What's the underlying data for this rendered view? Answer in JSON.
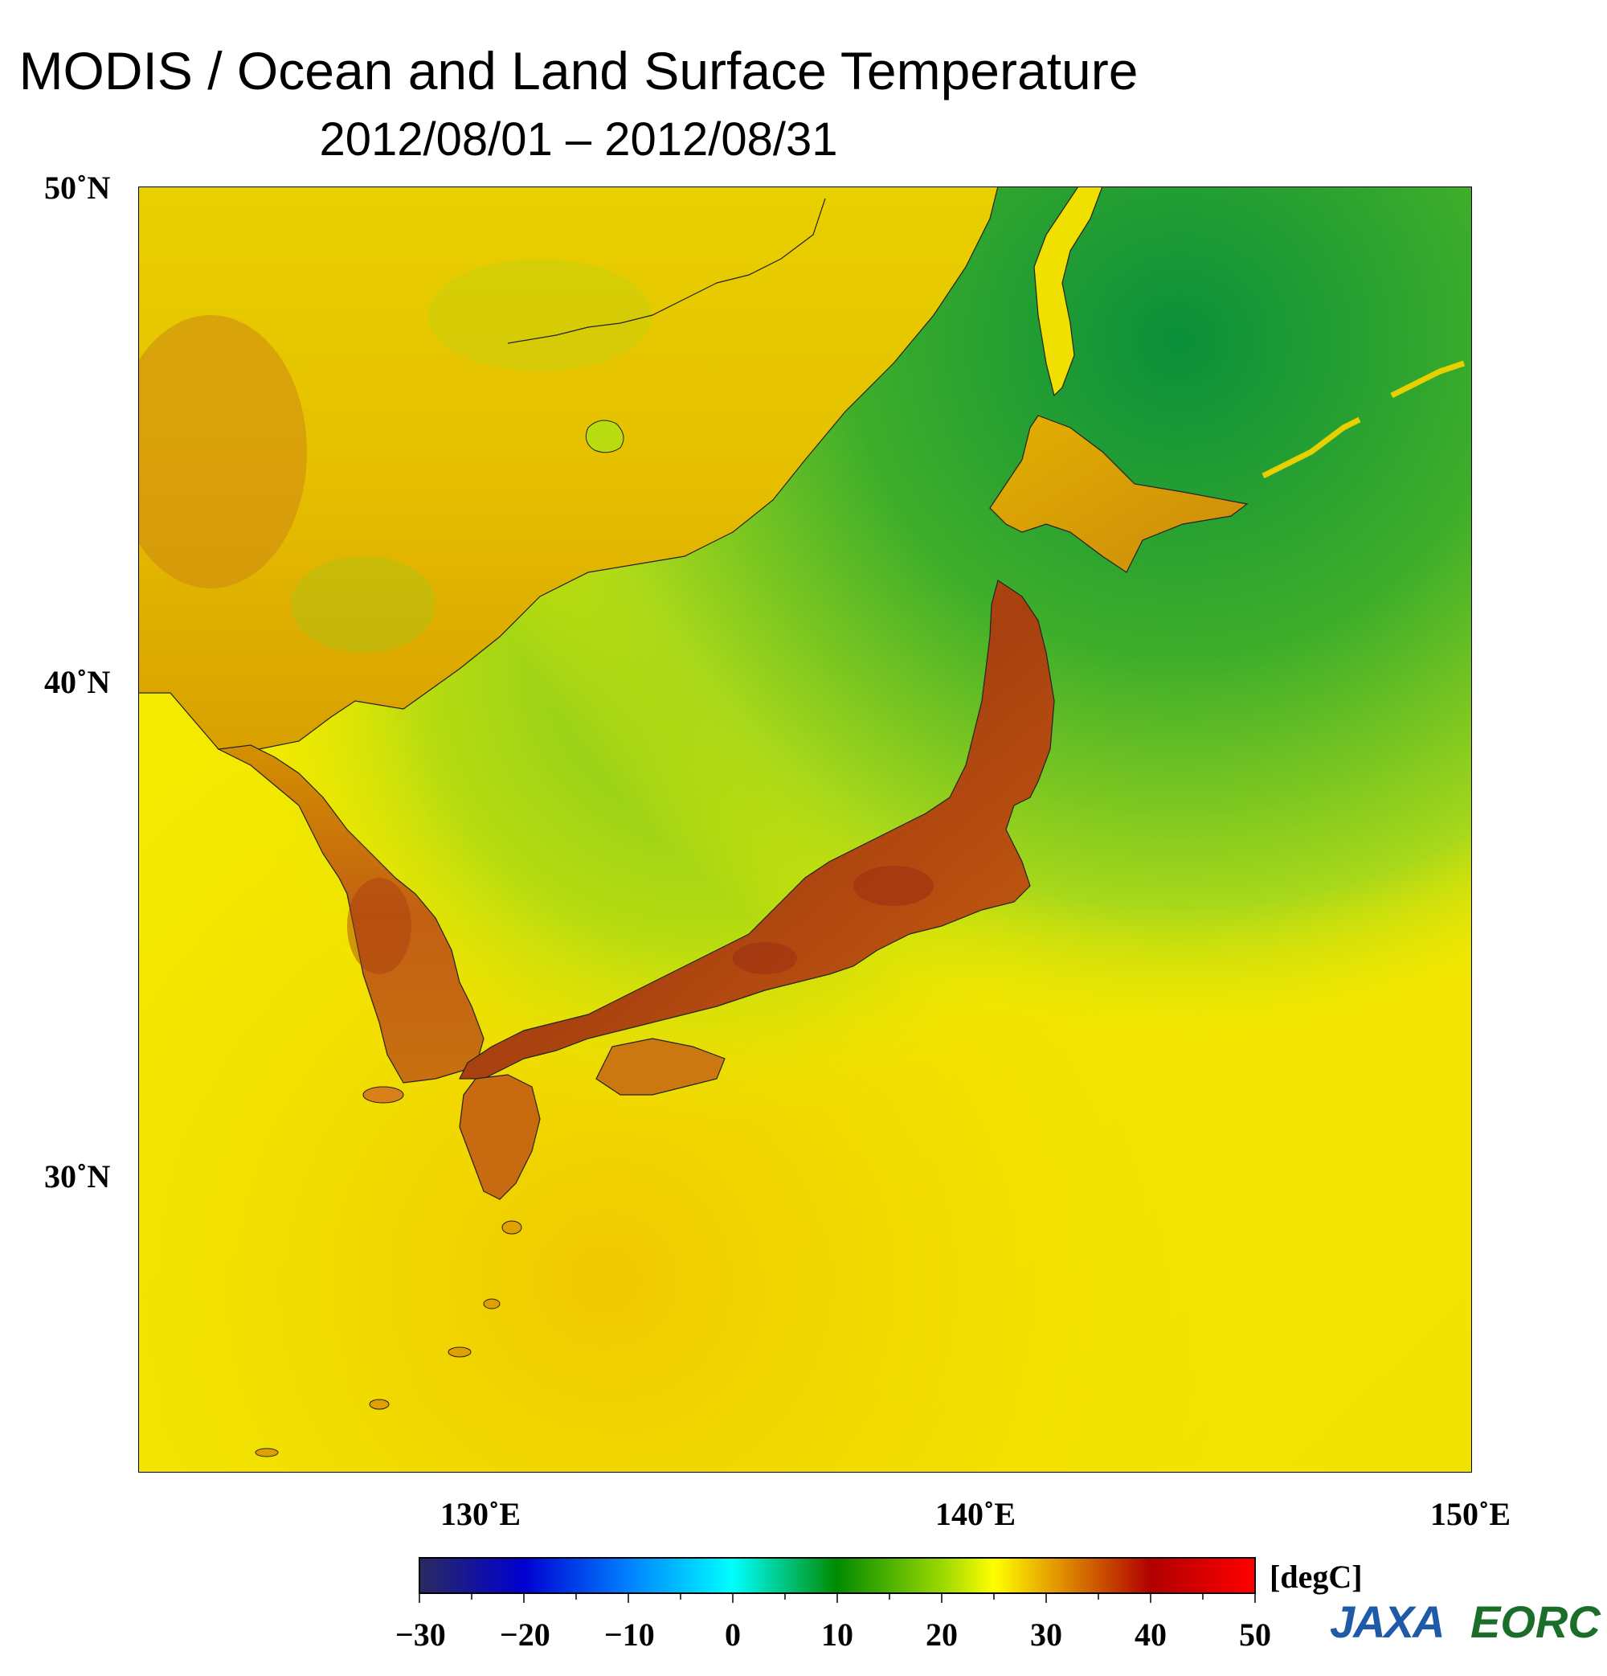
{
  "title": "MODIS / Ocean and Land Surface Temperature",
  "subtitle": "2012/08/01 – 2012/08/31",
  "map": {
    "lat_labels": [
      "50˚N",
      "40˚N",
      "30˚N"
    ],
    "lon_labels": [
      "130˚E",
      "140˚E",
      "150˚E"
    ]
  },
  "colorbar": {
    "unit": "[degC]",
    "tick_labels": [
      "−30",
      "−20",
      "−10",
      "0",
      "10",
      "20",
      "30",
      "40",
      "50"
    ],
    "stops": [
      {
        "value": -30,
        "color": "#2a2a60"
      },
      {
        "value": -20,
        "color": "#0000d0"
      },
      {
        "value": -10,
        "color": "#0080ff"
      },
      {
        "value": 0,
        "color": "#00ffff"
      },
      {
        "value": 10,
        "color": "#008a00"
      },
      {
        "value": 20,
        "color": "#9ad800"
      },
      {
        "value": 25,
        "color": "#ffff00"
      },
      {
        "value": 30,
        "color": "#e8a800"
      },
      {
        "value": 40,
        "color": "#b00000"
      },
      {
        "value": 50,
        "color": "#ff0000"
      }
    ]
  },
  "logo": {
    "main": "JAXA",
    "sub": "EORC"
  },
  "colors": {
    "ocean_cold": "#0f9a3a",
    "ocean_mid": "#9ad420",
    "ocean_warm": "#f2ee00",
    "land_hot": "#b84a10",
    "land_warm": "#e8b000"
  }
}
